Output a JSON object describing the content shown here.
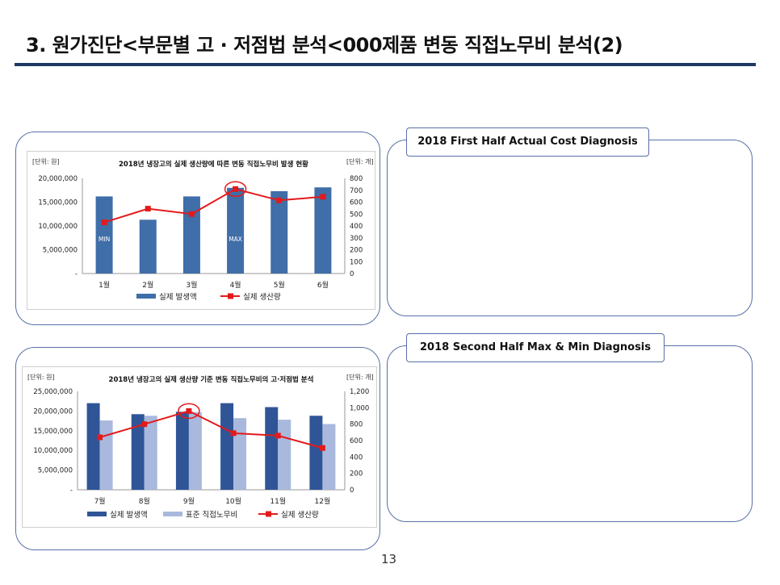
{
  "slide": {
    "title": "3. 원가진단<부문별 고 · 저점법 분석<000제품 변동 직접노무비 분석(2)",
    "page_number": "13",
    "right_top_heading": "2018 First Half Actual Cost Diagnosis",
    "right_bottom_heading": "2018 Second Half Max & Min Diagnosis"
  },
  "colors": {
    "bar_actual": "#3f6ea8",
    "bar_actual_dark": "#2f5597",
    "bar_standard": "#a9b9dd",
    "line": "#e31a1c",
    "rule": "#1f3864"
  },
  "chart_data": [
    {
      "type": "bar",
      "title": "2018년 냉장고의 실제 생산량에 따른 변동 직접노무비 발생 현황",
      "ylabel_left": "[단위: 원]",
      "ylabel_right": "[단위: 개]",
      "categories": [
        "1월",
        "2월",
        "3월",
        "4월",
        "5월",
        "6월"
      ],
      "y_ticks_left": [
        "20,000,000",
        "15,000,000",
        "10,000,000",
        "5,000,000",
        "-"
      ],
      "y_ticks_right": [
        "800",
        "700",
        "600",
        "500",
        "400",
        "300",
        "200",
        "100",
        "0"
      ],
      "ylim_left": [
        0,
        20000000
      ],
      "ylim_right": [
        0,
        800
      ],
      "series": [
        {
          "name": "실제 발생액",
          "kind": "bar",
          "axis": "left",
          "values": [
            16200000,
            11300000,
            16200000,
            18000000,
            17300000,
            18100000
          ]
        },
        {
          "name": "실제 생산량",
          "kind": "line",
          "axis": "right",
          "values": [
            430,
            545,
            500,
            710,
            615,
            645
          ]
        }
      ],
      "annotations": [
        {
          "text": "MIN",
          "category": "1월"
        },
        {
          "text": "MAX",
          "category": "4월"
        }
      ],
      "highlight_category": "4월",
      "legend_position": "bottom"
    },
    {
      "type": "bar",
      "title": "2018년 냉장고의 실제 생산량 기준 변동 직접노무비의 고·저점법 분석",
      "ylabel_left": "[단위: 원]",
      "ylabel_right": "[단위: 개]",
      "categories": [
        "7월",
        "8월",
        "9월",
        "10월",
        "11월",
        "12월"
      ],
      "y_ticks_left": [
        "25,000,000",
        "20,000,000",
        "15,000,000",
        "10,000,000",
        "5,000,000",
        "-"
      ],
      "y_ticks_right": [
        "1,200",
        "1,000",
        "800",
        "600",
        "400",
        "200",
        "0"
      ],
      "ylim_left": [
        0,
        25000000
      ],
      "ylim_right": [
        0,
        1200
      ],
      "series": [
        {
          "name": "실제 발생액",
          "kind": "bar",
          "axis": "left",
          "values": [
            22000000,
            19200000,
            19800000,
            22000000,
            21000000,
            18800000
          ]
        },
        {
          "name": "표준 직접노무비",
          "kind": "bar",
          "axis": "left",
          "values": [
            17600000,
            18800000,
            19700000,
            18200000,
            17800000,
            16700000
          ]
        },
        {
          "name": "실제 생산량",
          "kind": "line",
          "axis": "right",
          "values": [
            640,
            800,
            960,
            690,
            660,
            510
          ]
        }
      ],
      "highlight_category": "9월",
      "legend_position": "bottom"
    }
  ]
}
